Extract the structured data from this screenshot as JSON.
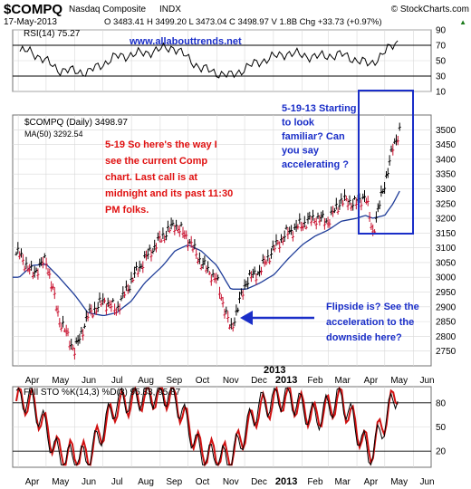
{
  "header": {
    "symbol": "$COMPQ",
    "name": "Nasdaq Composite",
    "exchange": "INDX",
    "source": "© StockCharts.com",
    "date": "17-May-2013",
    "quote": "O 3483.41  H 3499.20  L 3473.04  C 3498.97  V 1.8B  Chg +33.73 (+0.97%)",
    "quote_arrow": "▲"
  },
  "site_url": "www.allabouttrends.net",
  "annotations": {
    "left": [
      "5-19 So here's the way I",
      "see the current Comp",
      "chart. Last call is at",
      "midnight and its past 11:30",
      "PM folks."
    ],
    "right": [
      "5-19-13 Starting",
      "to look",
      "familiar? Can",
      "you say",
      "accelerating ?"
    ],
    "bottom": [
      "Flipside is? See the",
      "acceleration to the",
      "downside here?"
    ]
  },
  "colors": {
    "price_up": "#000000",
    "price_down": "#c8102e",
    "ma": "#1f3d99",
    "rsi_line": "#000000",
    "sto_k": "#000000",
    "sto_d": "#d01010",
    "annotation_red": "#e01010",
    "annotation_blue": "#1a2ec8",
    "grid": "#d8d8d8",
    "panel_bg": "#ffffff",
    "border": "#707070"
  },
  "chart_data": [
    {
      "type": "line",
      "title": "RSI(14) 75.27",
      "legend": [
        "RSI(14) 75.27"
      ],
      "ylim": [
        10,
        90
      ],
      "yticks": [
        10,
        30,
        50,
        70,
        90
      ],
      "grid": true,
      "x": [
        "2012-04",
        "2012-05",
        "2012-06",
        "2012-07",
        "2012-08",
        "2012-09",
        "2012-10",
        "2012-11",
        "2012-12",
        "2013-01",
        "2013-02",
        "2013-03",
        "2013-04",
        "2013-05"
      ],
      "series": [
        {
          "name": "RSI(14)",
          "values": [
            62,
            38,
            35,
            55,
            60,
            68,
            40,
            30,
            48,
            60,
            55,
            58,
            45,
            75
          ]
        }
      ]
    },
    {
      "type": "line",
      "title": "$COMPQ (Daily) 3498.97",
      "legend": [
        "$COMPQ (Daily) 3498.97",
        "MA(50) 3292.54"
      ],
      "ylim": [
        2700,
        3550
      ],
      "yticks": [
        2750,
        2800,
        2850,
        2900,
        2950,
        3000,
        3050,
        3100,
        3150,
        3200,
        3250,
        3300,
        3350,
        3400,
        3450,
        3500
      ],
      "grid": true,
      "xticks": [
        "Apr",
        "May",
        "Jun",
        "Jul",
        "Aug",
        "Sep",
        "Oct",
        "Nov",
        "Dec",
        "2013",
        "Feb",
        "Mar",
        "Apr",
        "May",
        "Jun"
      ],
      "x": [
        "2012-04-02",
        "2012-04-16",
        "2012-05-01",
        "2012-05-15",
        "2012-06-01",
        "2012-06-15",
        "2012-07-02",
        "2012-07-16",
        "2012-08-01",
        "2012-08-15",
        "2012-09-04",
        "2012-09-17",
        "2012-10-01",
        "2012-10-15",
        "2012-11-01",
        "2012-11-16",
        "2012-12-03",
        "2012-12-17",
        "2013-01-02",
        "2013-01-16",
        "2013-02-01",
        "2013-02-15",
        "2013-03-01",
        "2013-03-15",
        "2013-04-01",
        "2013-04-10",
        "2013-04-18",
        "2013-05-01",
        "2013-05-10",
        "2013-05-17"
      ],
      "series": [
        {
          "name": "$COMPQ",
          "values": [
            3080,
            3010,
            3060,
            2860,
            2750,
            2870,
            2920,
            2890,
            2990,
            3060,
            3140,
            3180,
            3130,
            3050,
            2990,
            2820,
            2990,
            3020,
            3100,
            3150,
            3180,
            3200,
            3190,
            3260,
            3250,
            3280,
            3150,
            3320,
            3440,
            3499
          ]
        },
        {
          "name": "MA(50) 3292.54",
          "values": [
            3000,
            3040,
            3045,
            3000,
            2940,
            2880,
            2870,
            2880,
            2920,
            2980,
            3040,
            3090,
            3110,
            3090,
            3040,
            2960,
            2960,
            2980,
            3010,
            3060,
            3110,
            3140,
            3160,
            3190,
            3200,
            3210,
            3200,
            3210,
            3250,
            3292
          ]
        }
      ]
    },
    {
      "type": "line",
      "title": "Full STO %K(14,3) %D(3) 95.83, 95.87",
      "legend": [
        "Full STO %K(14,3) %D(3) 95.83, 95.87"
      ],
      "ylim": [
        0,
        100
      ],
      "yticks": [
        20,
        50,
        80
      ],
      "grid": true,
      "xticks": [
        "Apr",
        "May",
        "Jun",
        "Jul",
        "Aug",
        "Sep",
        "Oct",
        "Nov",
        "Dec",
        "2013",
        "Feb",
        "Mar",
        "Apr",
        "May",
        "Jun"
      ],
      "x": [
        "2012-04",
        "2012-05",
        "2012-06",
        "2012-07",
        "2012-08",
        "2012-09",
        "2012-10",
        "2012-11",
        "2012-12",
        "2013-01",
        "2013-02",
        "2013-03",
        "2013-04",
        "2013-05"
      ],
      "series": [
        {
          "name": "%K",
          "values": [
            85,
            12,
            10,
            80,
            90,
            92,
            15,
            8,
            75,
            90,
            60,
            88,
            12,
            96
          ]
        },
        {
          "name": "%D",
          "values": [
            82,
            18,
            14,
            75,
            88,
            90,
            20,
            12,
            70,
            88,
            62,
            85,
            18,
            96
          ]
        }
      ]
    }
  ]
}
